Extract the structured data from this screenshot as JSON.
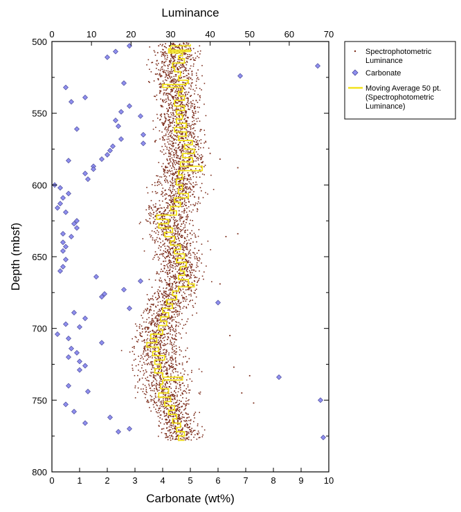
{
  "chart_data": {
    "type": "scatter",
    "title": "",
    "top_axis": {
      "label": "Luminance",
      "range": [
        0,
        70
      ],
      "ticks": [
        0,
        10,
        20,
        30,
        40,
        50,
        60,
        70
      ]
    },
    "bottom_axis": {
      "label": "Carbonate (wt%)",
      "range": [
        0,
        10
      ],
      "ticks": [
        0,
        1,
        2,
        3,
        4,
        5,
        6,
        7,
        8,
        9,
        10
      ]
    },
    "y_axis": {
      "label": "Depth (mbsf)",
      "range": [
        500,
        800
      ],
      "inverted": true,
      "ticks": [
        500,
        550,
        600,
        650,
        700,
        750,
        800
      ]
    },
    "legend_position": "outside-top-right",
    "legend": [
      {
        "label_lines": [
          "Spectrophotometric",
          "Luminance"
        ],
        "marker": "dot"
      },
      {
        "label_lines": [
          "Carbonate"
        ],
        "marker": "diamond"
      },
      {
        "label_lines": [
          "Moving Average 50 pt.",
          "(Spectrophotometric",
          "Luminance)"
        ],
        "marker": "line"
      }
    ],
    "series": [
      {
        "name": "Spectrophotometric Luminance",
        "axis": "top",
        "color": "#7a2a18",
        "note": "dense cloud of points; trend given as depth/center/spread in luminance units",
        "trend": [
          {
            "depth": 501,
            "center": 31.5,
            "spread": 4.5
          },
          {
            "depth": 510,
            "center": 31.5,
            "spread": 5.0
          },
          {
            "depth": 520,
            "center": 31.0,
            "spread": 5.0
          },
          {
            "depth": 530,
            "center": 31.5,
            "spread": 5.0
          },
          {
            "depth": 540,
            "center": 31.5,
            "spread": 5.0
          },
          {
            "depth": 550,
            "center": 32.0,
            "spread": 5.0
          },
          {
            "depth": 560,
            "center": 32.0,
            "spread": 5.0
          },
          {
            "depth": 570,
            "center": 33.0,
            "spread": 5.0
          },
          {
            "depth": 580,
            "center": 33.5,
            "spread": 5.5
          },
          {
            "depth": 590,
            "center": 32.5,
            "spread": 5.5
          },
          {
            "depth": 600,
            "center": 32.0,
            "spread": 5.5
          },
          {
            "depth": 610,
            "center": 32.0,
            "spread": 5.5
          },
          {
            "depth": 620,
            "center": 30.0,
            "spread": 5.5
          },
          {
            "depth": 630,
            "center": 29.5,
            "spread": 5.5
          },
          {
            "depth": 640,
            "center": 31.0,
            "spread": 5.5
          },
          {
            "depth": 650,
            "center": 32.0,
            "spread": 5.5
          },
          {
            "depth": 660,
            "center": 32.5,
            "spread": 5.5
          },
          {
            "depth": 670,
            "center": 32.0,
            "spread": 5.5
          },
          {
            "depth": 680,
            "center": 30.0,
            "spread": 5.5
          },
          {
            "depth": 690,
            "center": 28.5,
            "spread": 5.5
          },
          {
            "depth": 700,
            "center": 27.5,
            "spread": 5.5
          },
          {
            "depth": 710,
            "center": 26.5,
            "spread": 5.5
          },
          {
            "depth": 720,
            "center": 27.0,
            "spread": 5.5
          },
          {
            "depth": 730,
            "center": 28.0,
            "spread": 6.0
          },
          {
            "depth": 740,
            "center": 28.5,
            "spread": 6.0
          },
          {
            "depth": 750,
            "center": 29.5,
            "spread": 5.5
          },
          {
            "depth": 760,
            "center": 31.0,
            "spread": 5.0
          },
          {
            "depth": 770,
            "center": 32.5,
            "spread": 4.5
          },
          {
            "depth": 778,
            "center": 33.0,
            "spread": 4.0
          }
        ],
        "outliers": [
          {
            "depth": 503,
            "luminance": 27.0
          },
          {
            "depth": 578,
            "luminance": 40.0
          },
          {
            "depth": 582,
            "luminance": 42.5
          },
          {
            "depth": 588,
            "luminance": 47.0
          },
          {
            "depth": 634,
            "luminance": 47.0
          },
          {
            "depth": 636,
            "luminance": 44.0
          },
          {
            "depth": 669,
            "luminance": 42.5
          },
          {
            "depth": 705,
            "luminance": 45.0
          },
          {
            "depth": 727,
            "luminance": 46.0
          },
          {
            "depth": 733,
            "luminance": 50.0
          },
          {
            "depth": 745,
            "luminance": 48.0
          },
          {
            "depth": 752,
            "luminance": 51.0
          }
        ]
      },
      {
        "name": "Carbonate",
        "axis": "bottom",
        "color": "#8f8fef",
        "points": [
          {
            "depth": 503,
            "value": 2.8
          },
          {
            "depth": 507,
            "value": 2.3
          },
          {
            "depth": 511,
            "value": 2.0
          },
          {
            "depth": 517,
            "value": 9.6
          },
          {
            "depth": 524,
            "value": 6.8
          },
          {
            "depth": 529,
            "value": 2.6
          },
          {
            "depth": 532,
            "value": 0.5
          },
          {
            "depth": 539,
            "value": 1.2
          },
          {
            "depth": 542,
            "value": 0.7
          },
          {
            "depth": 545,
            "value": 2.8
          },
          {
            "depth": 549,
            "value": 2.5
          },
          {
            "depth": 552,
            "value": 3.2
          },
          {
            "depth": 555,
            "value": 2.3
          },
          {
            "depth": 559,
            "value": 2.4
          },
          {
            "depth": 561,
            "value": 0.9
          },
          {
            "depth": 565,
            "value": 3.3
          },
          {
            "depth": 568,
            "value": 2.5
          },
          {
            "depth": 571,
            "value": 3.3
          },
          {
            "depth": 573,
            "value": 2.2
          },
          {
            "depth": 576,
            "value": 2.1
          },
          {
            "depth": 579,
            "value": 2.0
          },
          {
            "depth": 582,
            "value": 1.8
          },
          {
            "depth": 583,
            "value": 0.6
          },
          {
            "depth": 587,
            "value": 1.5
          },
          {
            "depth": 589,
            "value": 1.5
          },
          {
            "depth": 592,
            "value": 1.2
          },
          {
            "depth": 596,
            "value": 1.3
          },
          {
            "depth": 600,
            "value": 0.1
          },
          {
            "depth": 602,
            "value": 0.3
          },
          {
            "depth": 606,
            "value": 0.6
          },
          {
            "depth": 609,
            "value": 0.4
          },
          {
            "depth": 613,
            "value": 0.3
          },
          {
            "depth": 616,
            "value": 0.2
          },
          {
            "depth": 619,
            "value": 0.5
          },
          {
            "depth": 625,
            "value": 0.9
          },
          {
            "depth": 627,
            "value": 0.8
          },
          {
            "depth": 630,
            "value": 0.9
          },
          {
            "depth": 634,
            "value": 0.4
          },
          {
            "depth": 636,
            "value": 0.7
          },
          {
            "depth": 640,
            "value": 0.4
          },
          {
            "depth": 643,
            "value": 0.5
          },
          {
            "depth": 646,
            "value": 0.4
          },
          {
            "depth": 652,
            "value": 0.5
          },
          {
            "depth": 657,
            "value": 0.4
          },
          {
            "depth": 660,
            "value": 0.3
          },
          {
            "depth": 664,
            "value": 1.6
          },
          {
            "depth": 667,
            "value": 3.2
          },
          {
            "depth": 673,
            "value": 2.6
          },
          {
            "depth": 676,
            "value": 1.9
          },
          {
            "depth": 678,
            "value": 1.8
          },
          {
            "depth": 682,
            "value": 6.0
          },
          {
            "depth": 686,
            "value": 2.8
          },
          {
            "depth": 689,
            "value": 0.8
          },
          {
            "depth": 693,
            "value": 1.2
          },
          {
            "depth": 697,
            "value": 0.5
          },
          {
            "depth": 699,
            "value": 1.0
          },
          {
            "depth": 704,
            "value": 0.2
          },
          {
            "depth": 707,
            "value": 0.6
          },
          {
            "depth": 710,
            "value": 1.8
          },
          {
            "depth": 714,
            "value": 0.7
          },
          {
            "depth": 717,
            "value": 0.9
          },
          {
            "depth": 720,
            "value": 0.6
          },
          {
            "depth": 723,
            "value": 1.0
          },
          {
            "depth": 726,
            "value": 1.2
          },
          {
            "depth": 729,
            "value": 1.0
          },
          {
            "depth": 734,
            "value": 8.2
          },
          {
            "depth": 740,
            "value": 0.6
          },
          {
            "depth": 744,
            "value": 1.3
          },
          {
            "depth": 750,
            "value": 9.7
          },
          {
            "depth": 753,
            "value": 0.5
          },
          {
            "depth": 758,
            "value": 0.8
          },
          {
            "depth": 762,
            "value": 2.1
          },
          {
            "depth": 766,
            "value": 1.2
          },
          {
            "depth": 770,
            "value": 2.8
          },
          {
            "depth": 772,
            "value": 2.4
          },
          {
            "depth": 776,
            "value": 9.8
          }
        ]
      },
      {
        "name": "Moving Average 50 pt. (Spectrophotometric Luminance)",
        "axis": "top",
        "color": "#f2e21a",
        "points": [
          {
            "depth": 502,
            "luminance": 35.0
          },
          {
            "depth": 503,
            "luminance": 30.0
          },
          {
            "depth": 505,
            "luminance": 29.5
          },
          {
            "depth": 506,
            "luminance": 35.0
          },
          {
            "depth": 507,
            "luminance": 29.5
          },
          {
            "depth": 508,
            "luminance": 33.0
          },
          {
            "depth": 510,
            "luminance": 32.0
          },
          {
            "depth": 512,
            "luminance": 33.5
          },
          {
            "depth": 515,
            "luminance": 30.5
          },
          {
            "depth": 518,
            "luminance": 31.0
          },
          {
            "depth": 521,
            "luminance": 32.5
          },
          {
            "depth": 524,
            "luminance": 32.0
          },
          {
            "depth": 527,
            "luminance": 34.5
          },
          {
            "depth": 529,
            "luminance": 34.0
          },
          {
            "depth": 530,
            "luminance": 28.0
          },
          {
            "depth": 532,
            "luminance": 33.0
          },
          {
            "depth": 535,
            "luminance": 32.0
          },
          {
            "depth": 538,
            "luminance": 33.5
          },
          {
            "depth": 541,
            "luminance": 31.0
          },
          {
            "depth": 545,
            "luminance": 33.5
          },
          {
            "depth": 548,
            "luminance": 31.5
          },
          {
            "depth": 551,
            "luminance": 33.0
          },
          {
            "depth": 554,
            "luminance": 31.5
          },
          {
            "depth": 557,
            "luminance": 34.0
          },
          {
            "depth": 560,
            "luminance": 31.0
          },
          {
            "depth": 563,
            "luminance": 34.0
          },
          {
            "depth": 566,
            "luminance": 32.0
          },
          {
            "depth": 569,
            "luminance": 35.5
          },
          {
            "depth": 572,
            "luminance": 33.5
          },
          {
            "depth": 575,
            "luminance": 36.0
          },
          {
            "depth": 578,
            "luminance": 33.0
          },
          {
            "depth": 581,
            "luminance": 35.5
          },
          {
            "depth": 584,
            "luminance": 32.5
          },
          {
            "depth": 587,
            "luminance": 38.0
          },
          {
            "depth": 590,
            "luminance": 32.0
          },
          {
            "depth": 593,
            "luminance": 33.0
          },
          {
            "depth": 596,
            "luminance": 31.5
          },
          {
            "depth": 600,
            "luminance": 33.0
          },
          {
            "depth": 603,
            "luminance": 32.0
          },
          {
            "depth": 606,
            "luminance": 34.5
          },
          {
            "depth": 609,
            "luminance": 31.0
          },
          {
            "depth": 612,
            "luminance": 32.5
          },
          {
            "depth": 615,
            "luminance": 30.0
          },
          {
            "depth": 618,
            "luminance": 31.5
          },
          {
            "depth": 621,
            "luminance": 26.5
          },
          {
            "depth": 624,
            "luminance": 29.5
          },
          {
            "depth": 627,
            "luminance": 27.0
          },
          {
            "depth": 630,
            "luminance": 30.5
          },
          {
            "depth": 633,
            "luminance": 28.5
          },
          {
            "depth": 636,
            "luminance": 31.0
          },
          {
            "depth": 639,
            "luminance": 30.0
          },
          {
            "depth": 642,
            "luminance": 32.5
          },
          {
            "depth": 645,
            "luminance": 31.0
          },
          {
            "depth": 648,
            "luminance": 33.5
          },
          {
            "depth": 651,
            "luminance": 31.5
          },
          {
            "depth": 654,
            "luminance": 34.0
          },
          {
            "depth": 657,
            "luminance": 32.5
          },
          {
            "depth": 660,
            "luminance": 33.5
          },
          {
            "depth": 663,
            "luminance": 32.0
          },
          {
            "depth": 666,
            "luminance": 34.5
          },
          {
            "depth": 669,
            "luminance": 36.0
          },
          {
            "depth": 671,
            "luminance": 32.0
          },
          {
            "depth": 674,
            "luminance": 30.5
          },
          {
            "depth": 677,
            "luminance": 31.5
          },
          {
            "depth": 680,
            "luminance": 29.0
          },
          {
            "depth": 683,
            "luminance": 30.5
          },
          {
            "depth": 686,
            "luminance": 28.0
          },
          {
            "depth": 689,
            "luminance": 29.5
          },
          {
            "depth": 692,
            "luminance": 27.5
          },
          {
            "depth": 695,
            "luminance": 29.0
          },
          {
            "depth": 698,
            "luminance": 27.0
          },
          {
            "depth": 701,
            "luminance": 28.0
          },
          {
            "depth": 704,
            "luminance": 25.0
          },
          {
            "depth": 707,
            "luminance": 26.5
          },
          {
            "depth": 710,
            "luminance": 24.0
          },
          {
            "depth": 713,
            "luminance": 27.0
          },
          {
            "depth": 716,
            "luminance": 25.5
          },
          {
            "depth": 719,
            "luminance": 28.5
          },
          {
            "depth": 722,
            "luminance": 26.0
          },
          {
            "depth": 725,
            "luminance": 27.5
          },
          {
            "depth": 728,
            "luminance": 26.0
          },
          {
            "depth": 731,
            "luminance": 28.0
          },
          {
            "depth": 734,
            "luminance": 33.0
          },
          {
            "depth": 736,
            "luminance": 28.0
          },
          {
            "depth": 739,
            "luminance": 27.5
          },
          {
            "depth": 742,
            "luminance": 29.5
          },
          {
            "depth": 745,
            "luminance": 27.0
          },
          {
            "depth": 748,
            "luminance": 30.0
          },
          {
            "depth": 751,
            "luminance": 28.5
          },
          {
            "depth": 754,
            "luminance": 31.0
          },
          {
            "depth": 757,
            "luminance": 29.5
          },
          {
            "depth": 760,
            "luminance": 31.5
          },
          {
            "depth": 763,
            "luminance": 30.5
          },
          {
            "depth": 766,
            "luminance": 32.5
          },
          {
            "depth": 769,
            "luminance": 31.5
          },
          {
            "depth": 772,
            "luminance": 33.5
          },
          {
            "depth": 775,
            "luminance": 32.0
          },
          {
            "depth": 778,
            "luminance": 33.5
          }
        ]
      }
    ]
  }
}
